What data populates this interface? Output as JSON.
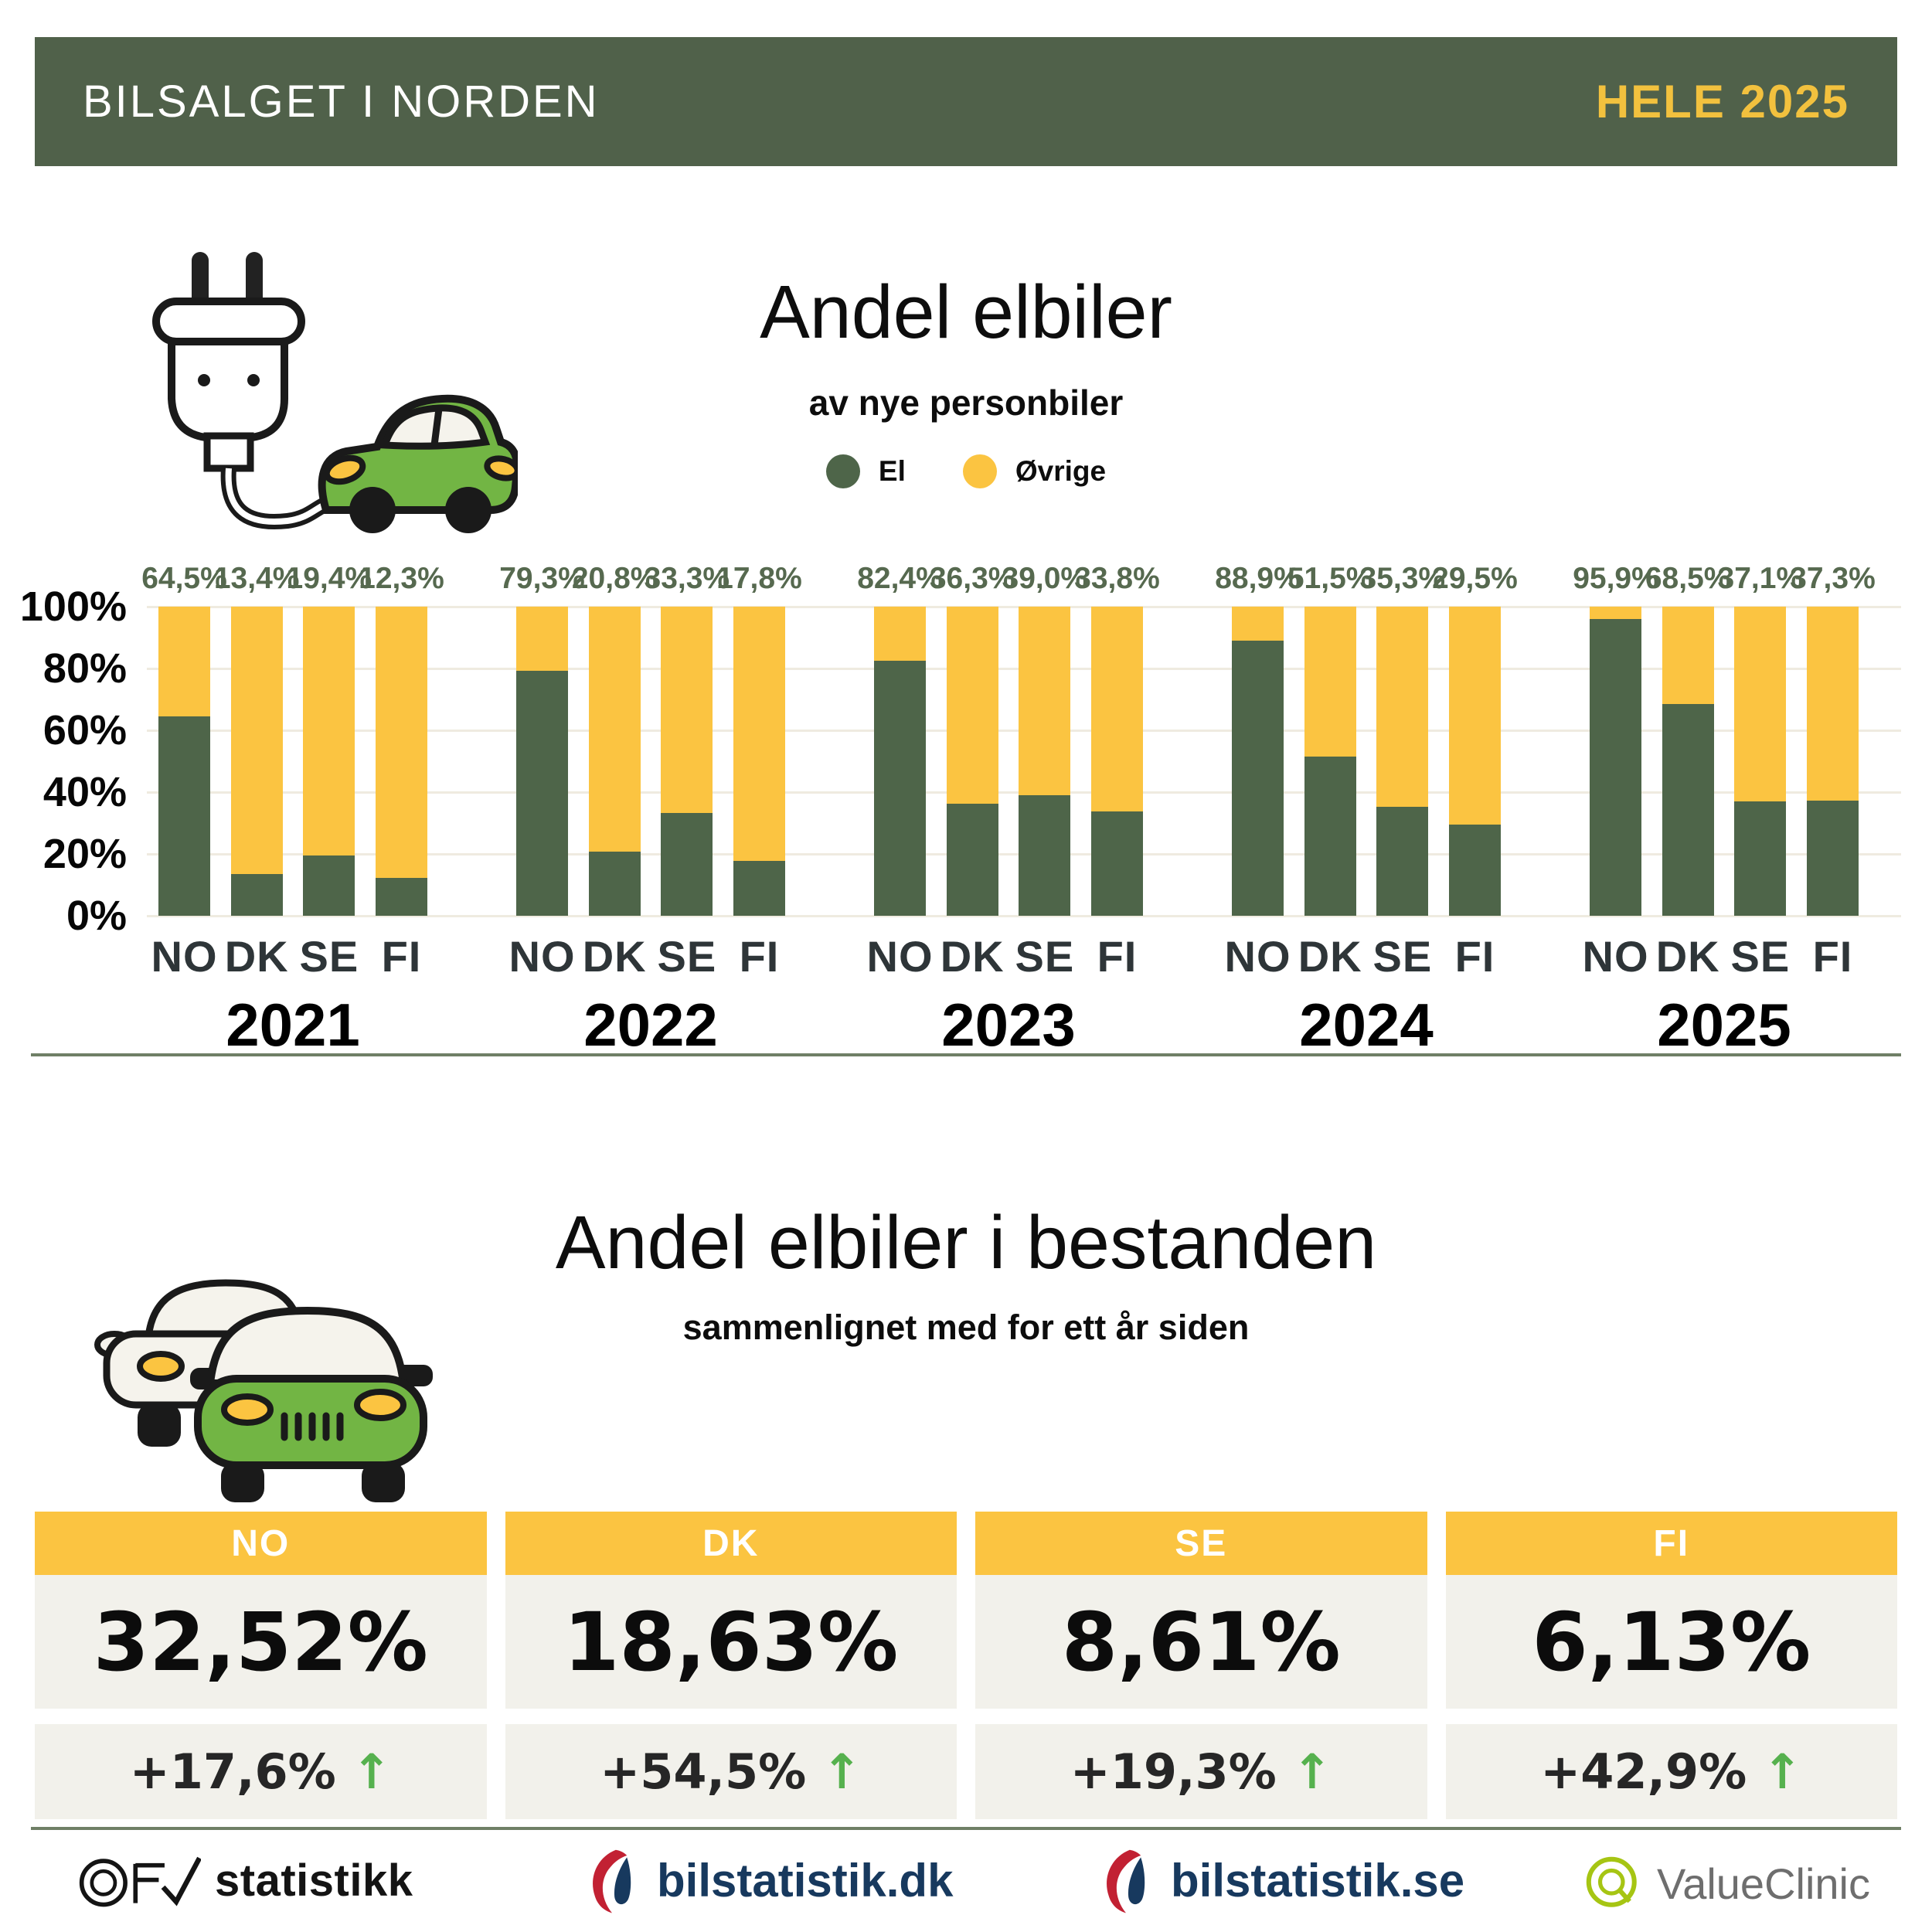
{
  "header": {
    "title": "BILSALGET I NORDEN",
    "period": "HELE 2025"
  },
  "section_sales": {
    "title": "Andel elbiler",
    "subtitle": "av nye personbiler",
    "legend": [
      {
        "label": "El",
        "color": "#4E6549"
      },
      {
        "label": "Øvrige",
        "color": "#FBC441"
      }
    ]
  },
  "chart_data": {
    "type": "bar",
    "stacked": true,
    "unit": "%",
    "ylim": [
      0,
      100
    ],
    "yticks": [
      "0%",
      "20%",
      "40%",
      "60%",
      "80%",
      "100%"
    ],
    "grid": true,
    "legend_position": "top",
    "series_names": [
      "El",
      "Øvrige"
    ],
    "categories": [
      "NO",
      "DK",
      "SE",
      "FI"
    ],
    "groups": [
      {
        "year": "2021",
        "values": [
          64.5,
          13.4,
          19.4,
          12.3
        ],
        "labels": [
          "64,5%",
          "13,4%",
          "19,4%",
          "12,3%"
        ]
      },
      {
        "year": "2022",
        "values": [
          79.3,
          20.8,
          33.3,
          17.8
        ],
        "labels": [
          "79,3%",
          "20,8%",
          "33,3%",
          "17,8%"
        ]
      },
      {
        "year": "2023",
        "values": [
          82.4,
          36.3,
          39.0,
          33.8
        ],
        "labels": [
          "82,4%",
          "36,3%",
          "39,0%",
          "33,8%"
        ]
      },
      {
        "year": "2024",
        "values": [
          88.9,
          51.5,
          35.3,
          29.5
        ],
        "labels": [
          "88,9%",
          "51,5%",
          "35,3%",
          "29,5%"
        ]
      },
      {
        "year": "2025",
        "values": [
          95.9,
          68.5,
          37.1,
          37.3
        ],
        "labels": [
          "95,9%",
          "68,5%",
          "37,1%",
          "37,3%"
        ]
      }
    ]
  },
  "section_fleet": {
    "title": "Andel elbiler i bestanden",
    "subtitle": "sammenlignet med for ett år siden",
    "cards": [
      {
        "country": "NO",
        "share": "32,52%",
        "change": "+17,6%",
        "direction": "up"
      },
      {
        "country": "DK",
        "share": "18,63%",
        "change": "+54,5%",
        "direction": "up"
      },
      {
        "country": "SE",
        "share": "8,61%",
        "change": "+19,3%",
        "direction": "up"
      },
      {
        "country": "FI",
        "share": "6,13%",
        "change": "+42,9%",
        "direction": "up"
      }
    ]
  },
  "footer": {
    "logos": [
      {
        "name": "ofv-statistikk",
        "text": "statistikk"
      },
      {
        "name": "bilstatistik-dk",
        "text": "bilstatistik.dk"
      },
      {
        "name": "bilstatistik-se",
        "text": "bilstatistik.se"
      },
      {
        "name": "valueclinic",
        "text": "ValueClinic"
      }
    ]
  },
  "colors": {
    "header_bg": "#50614A",
    "accent_yellow": "#FBC441",
    "bar_green": "#4E6549",
    "pct_label_green": "#56694F",
    "box_gray": "#F2F1EB",
    "arrow_green": "#56B14E",
    "divider": "#6F7F66"
  }
}
